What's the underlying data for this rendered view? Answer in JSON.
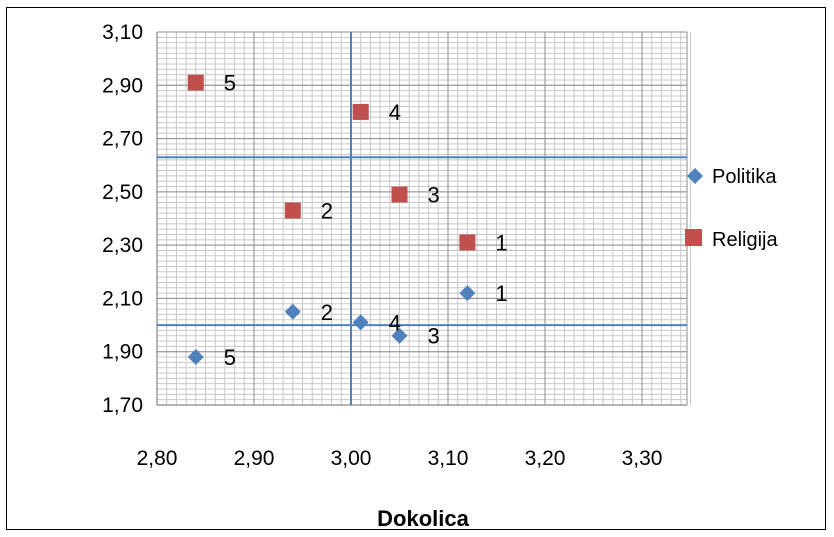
{
  "chart_data": {
    "type": "scatter",
    "xlabel": "Dokolica",
    "ylabel": "",
    "xlim": [
      2.8,
      3.36
    ],
    "ylim": [
      1.7,
      3.1
    ],
    "x_ticks": [
      "2,80",
      "2,90",
      "3,00",
      "3,10",
      "3,20",
      "3,30"
    ],
    "y_ticks": [
      "1,70",
      "1,90",
      "2,10",
      "2,30",
      "2,50",
      "2,70",
      "2,90",
      "3,10"
    ],
    "grid": true,
    "legend": "right",
    "series": [
      {
        "name": "Politika",
        "color": "#4f81bd",
        "marker": "diamond",
        "points": [
          {
            "x": 3.12,
            "y": 2.12,
            "label": "1"
          },
          {
            "x": 2.94,
            "y": 2.05,
            "label": "2"
          },
          {
            "x": 3.05,
            "y": 1.96,
            "label": "3"
          },
          {
            "x": 3.01,
            "y": 2.01,
            "label": "4"
          },
          {
            "x": 2.84,
            "y": 1.88,
            "label": "5"
          }
        ]
      },
      {
        "name": "Religija",
        "color": "#c0504d",
        "marker": "square",
        "points": [
          {
            "x": 3.12,
            "y": 2.31,
            "label": "1"
          },
          {
            "x": 2.94,
            "y": 2.43,
            "label": "2"
          },
          {
            "x": 3.05,
            "y": 2.49,
            "label": "3"
          },
          {
            "x": 3.01,
            "y": 2.8,
            "label": "4"
          },
          {
            "x": 2.84,
            "y": 2.91,
            "label": "5"
          }
        ]
      }
    ],
    "reference_lines": {
      "vertical_x": 3.0,
      "horizontal_y": [
        2.63,
        2.0
      ],
      "color": "#4f81bd"
    }
  }
}
